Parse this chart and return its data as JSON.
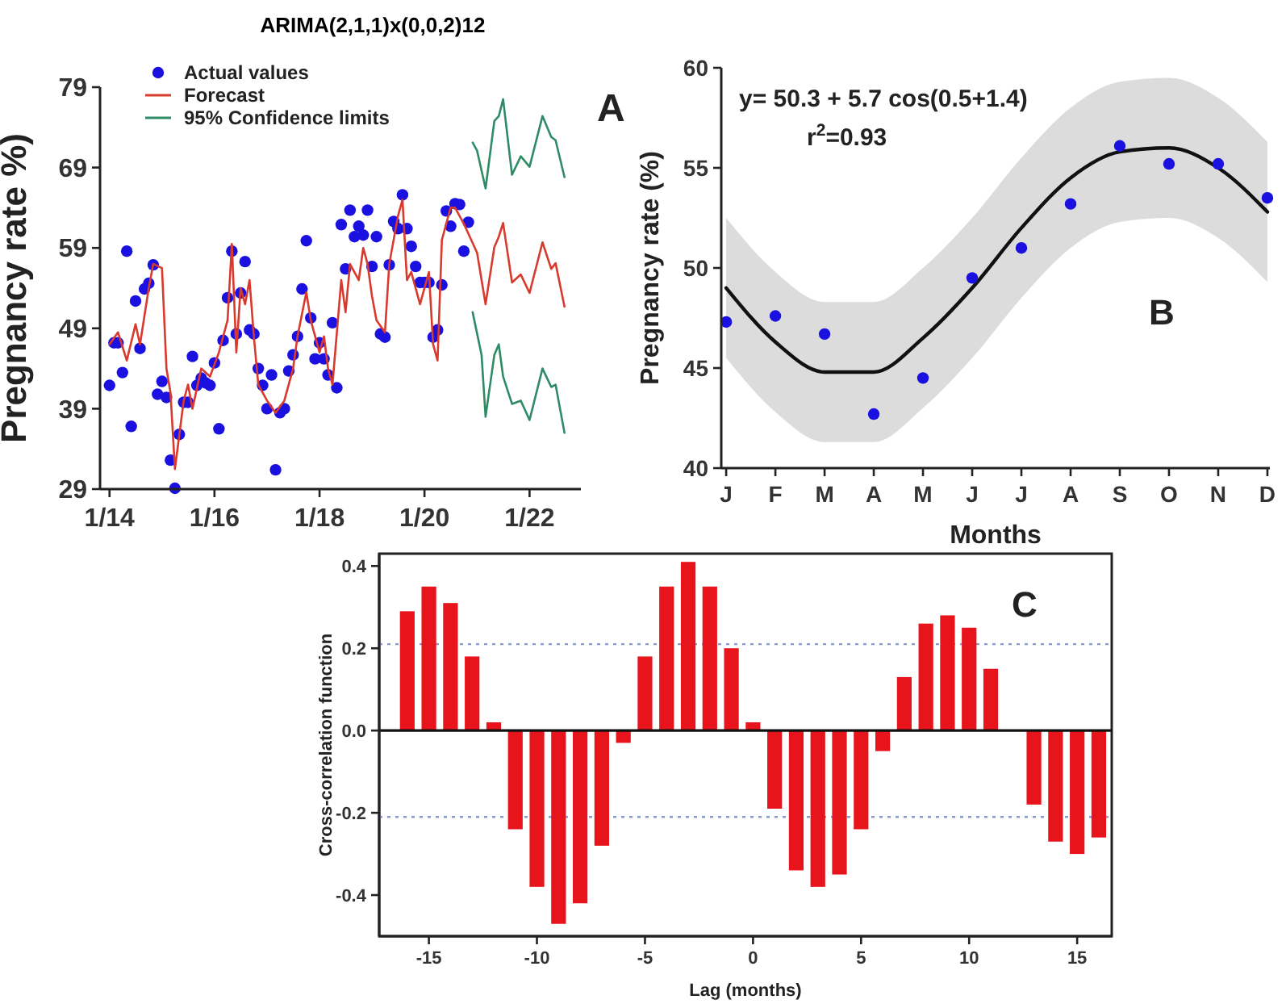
{
  "chart_data": [
    {
      "type": "scatter",
      "title": "ARIMA(2,1,1)x(0,0,2)12",
      "ylabel": "Pregnancy rate %)",
      "xlim": [
        "2013-10-27",
        "2022-12-24"
      ],
      "xticks": [
        {
          "value": "2014-01",
          "label": "1/14"
        },
        {
          "value": "2016-01",
          "label": "1/16"
        },
        {
          "value": "2018-01",
          "label": "1/18"
        },
        {
          "value": "2020-01",
          "label": "1/20"
        },
        {
          "value": "2022-01",
          "label": "1/22"
        }
      ],
      "ylim": [
        29,
        79
      ],
      "yticks": [
        29,
        39,
        49,
        59,
        69,
        79
      ],
      "legend": "top left",
      "annotations": [
        "A"
      ],
      "series": [
        {
          "name": "Actual values",
          "type": "scatter",
          "marker": "circle",
          "color": "#1a10e0",
          "x": [
            "2014-01",
            "2014-02",
            "2014-03",
            "2014-04",
            "2014-05",
            "2014-06",
            "2014-07",
            "2014-08",
            "2014-09",
            "2014-10",
            "2014-11",
            "2014-12",
            "2015-01",
            "2015-02",
            "2015-03",
            "2015-04",
            "2015-05",
            "2015-06",
            "2015-07",
            "2015-08",
            "2015-09",
            "2015-10",
            "2015-11",
            "2015-12",
            "2016-01",
            "2016-02",
            "2016-03",
            "2016-04",
            "2016-05",
            "2016-06",
            "2016-07",
            "2016-08",
            "2016-09",
            "2016-10",
            "2016-11",
            "2016-12",
            "2017-01",
            "2017-02",
            "2017-03",
            "2017-04",
            "2017-05",
            "2017-06",
            "2017-07",
            "2017-08",
            "2017-09",
            "2017-10",
            "2017-11",
            "2017-12",
            "2018-01",
            "2018-02",
            "2018-03",
            "2018-04",
            "2018-05",
            "2018-06",
            "2018-07",
            "2018-08",
            "2018-09",
            "2018-10",
            "2018-11",
            "2018-12",
            "2019-01",
            "2019-02",
            "2019-03",
            "2019-04",
            "2019-05",
            "2019-06",
            "2019-07",
            "2019-08",
            "2019-09",
            "2019-10",
            "2019-11",
            "2019-12",
            "2020-01",
            "2020-02",
            "2020-03",
            "2020-04",
            "2020-05",
            "2020-06",
            "2020-07",
            "2020-08",
            "2020-09",
            "2020-10",
            "2020-11"
          ],
          "values": [
            41.9,
            47.2,
            47.2,
            43.5,
            58.6,
            36.8,
            52.4,
            46.5,
            53.9,
            54.6,
            56.9,
            40.8,
            42.4,
            40.4,
            32.6,
            29.1,
            35.8,
            39.8,
            39.8,
            45.5,
            41.9,
            42.8,
            42.2,
            41.9,
            44.7,
            36.5,
            47.5,
            52.8,
            58.6,
            48.3,
            53.4,
            57.3,
            48.8,
            48.3,
            44,
            41.9,
            39,
            43.2,
            31.4,
            38.5,
            39,
            43.7,
            45.7,
            48,
            53.9,
            59.9,
            50.3,
            45.2,
            47.2,
            45.2,
            43.2,
            49.7,
            41.6,
            61.9,
            56.4,
            63.7,
            60.4,
            61.7,
            60.6,
            63.7,
            56.7,
            60.4,
            48.3,
            47.9,
            56.9,
            62.3,
            61.4,
            65.6,
            61.4,
            59.2,
            56.7,
            54.7,
            54.7,
            54.7,
            47.9,
            48.8,
            54.4,
            63.6,
            61.7,
            64.5,
            64.4,
            58.6,
            62.2
          ]
        },
        {
          "name": "Forecast",
          "type": "line",
          "color": "#d93a2e",
          "x": [
            "2014-01",
            "2014-03",
            "2014-05",
            "2014-07",
            "2014-08",
            "2014-10",
            "2014-11",
            "2015-01",
            "2015-02",
            "2015-03",
            "2015-04",
            "2015-06",
            "2015-07",
            "2015-08",
            "2015-10",
            "2015-12",
            "2016-02",
            "2016-04",
            "2016-05",
            "2016-06",
            "2016-07",
            "2016-08",
            "2016-09",
            "2016-10",
            "2016-11",
            "2017-01",
            "2017-03",
            "2017-05",
            "2017-07",
            "2017-08",
            "2017-10",
            "2017-11",
            "2018-01",
            "2018-02",
            "2018-03",
            "2018-04",
            "2018-06",
            "2018-07",
            "2018-08",
            "2018-10",
            "2018-11",
            "2018-12",
            "2019-01",
            "2019-02",
            "2019-04",
            "2019-05",
            "2019-07",
            "2019-08",
            "2019-09",
            "2019-10",
            "2019-12",
            "2020-02",
            "2020-03",
            "2020-04",
            "2020-05",
            "2020-07",
            "2020-08",
            "2020-10",
            "2021-01",
            "2021-03",
            "2021-05",
            "2021-06",
            "2021-07",
            "2021-09",
            "2021-11",
            "2022-01",
            "2022-04",
            "2022-06",
            "2022-07",
            "2022-09"
          ],
          "values": [
            47,
            48.5,
            45,
            49.5,
            47,
            54,
            57,
            56.5,
            44,
            41,
            31.5,
            40,
            42,
            39,
            44,
            43,
            46,
            50,
            59.5,
            46,
            54,
            52,
            55,
            48,
            42,
            40,
            38.5,
            40,
            44,
            48,
            53.5,
            50,
            46,
            48,
            44,
            42,
            55,
            51,
            57,
            55,
            59,
            57,
            53,
            50,
            48.5,
            57,
            63,
            65,
            55,
            56,
            52,
            56,
            47,
            45,
            60,
            64,
            64,
            62,
            58.4,
            52,
            59.1,
            60.4,
            62.1,
            54.7,
            55.7,
            53.4,
            59.7,
            56.4,
            57.1,
            51.7
          ]
        },
        {
          "name": "95% Confidence limits",
          "type": "line",
          "color": "#2e8b66",
          "x": [
            "2020-12",
            "2021-01",
            "2021-03",
            "2021-05",
            "2021-06",
            "2021-07",
            "2021-09",
            "2021-11",
            "2022-01",
            "2022-04",
            "2022-06",
            "2022-07",
            "2022-09"
          ],
          "values": [
            72.1,
            71.1,
            66.4,
            74.8,
            75.4,
            77.5,
            68.1,
            70.4,
            69.1,
            75.4,
            72.8,
            72.4,
            67.8
          ]
        },
        {
          "type": "line",
          "color": "#2e8b66",
          "x": [
            "2020-12",
            "2021-02",
            "2021-03",
            "2021-05",
            "2021-06",
            "2021-07",
            "2021-09",
            "2021-11",
            "2022-01",
            "2022-04",
            "2022-06",
            "2022-07",
            "2022-09"
          ],
          "values": [
            51,
            45.7,
            38,
            45.7,
            47,
            43,
            39.6,
            40,
            37.6,
            44,
            41.7,
            42,
            36
          ]
        }
      ]
    },
    {
      "type": "scatter",
      "xlabel": "Months",
      "ylabel": "Pregnancy rate (%)",
      "categories": [
        "J",
        "F",
        "M",
        "A",
        "M",
        "J",
        "J",
        "A",
        "S",
        "O",
        "N",
        "D"
      ],
      "ylim": [
        40,
        60
      ],
      "yticks": [
        40,
        45,
        50,
        55,
        60
      ],
      "annotations": [
        "y= 50.3 + 5.7 cos(0.5+1.4)",
        "r$^{2}$=0.93",
        "B"
      ],
      "series": [
        {
          "type": "line",
          "color": "#111111",
          "values": [
            49,
            46.3,
            44.8,
            44.8,
            46.5,
            49,
            52,
            54.5,
            55.8,
            56,
            55,
            52.8
          ],
          "lower": [
            45.5,
            42.8,
            41.3,
            41.3,
            43,
            45.5,
            48.5,
            51,
            52.3,
            52.5,
            51.5,
            49.3
          ],
          "upper": [
            52.5,
            49.8,
            48.3,
            48.3,
            50,
            52.5,
            55.5,
            58,
            59.3,
            59.5,
            58.5,
            56.3
          ]
        },
        {
          "type": "scatter",
          "marker": "circle",
          "color": "#1a10e0",
          "values": [
            47.3,
            47.6,
            46.7,
            42.7,
            44.5,
            49.5,
            51,
            53.2,
            56.1,
            55.2,
            55.2,
            53.5
          ]
        }
      ]
    },
    {
      "type": "bar",
      "xlabel": "Lag (months)",
      "ylabel": "Cross-correlation function",
      "xlim": [
        -17.3,
        16.6
      ],
      "xticks": [
        -15,
        -10,
        -5,
        0,
        5,
        10,
        15
      ],
      "ylim": [
        -0.5,
        0.43
      ],
      "yticks": [
        {
          "value": -0.4,
          "label": "-0.4"
        },
        {
          "value": -0.2,
          "label": "-0.2"
        },
        {
          "value": 0,
          "label": "0.0"
        },
        {
          "value": 0.2,
          "label": "0.2"
        },
        {
          "value": 0.4,
          "label": "0.4"
        }
      ],
      "annotations": [
        "C"
      ],
      "ref_lines": [
        {
          "axis": "y",
          "value": 0.21,
          "color": "#8899cc",
          "line_style": "dotted"
        },
        {
          "axis": "y",
          "value": -0.21,
          "color": "#8899cc",
          "line_style": "dotted"
        }
      ],
      "series": [
        {
          "color": "#e8141c",
          "x": [
            -16,
            -15,
            -14,
            -13,
            -12,
            -11,
            -10,
            -9,
            -8,
            -7,
            -6,
            -5,
            -4,
            -3,
            -2,
            -1,
            0,
            1,
            2,
            3,
            4,
            5,
            6,
            7,
            8,
            9,
            10,
            11,
            13,
            14,
            15,
            16
          ],
          "values": [
            0.29,
            0.35,
            0.31,
            0.18,
            0.02,
            -0.24,
            -0.38,
            -0.47,
            -0.42,
            -0.28,
            -0.03,
            0.18,
            0.35,
            0.41,
            0.35,
            0.2,
            0.02,
            -0.19,
            -0.34,
            -0.38,
            -0.35,
            -0.24,
            -0.05,
            0.13,
            0.26,
            0.28,
            0.25,
            0.15,
            -0.18,
            -0.27,
            -0.3,
            -0.26
          ]
        }
      ]
    }
  ]
}
